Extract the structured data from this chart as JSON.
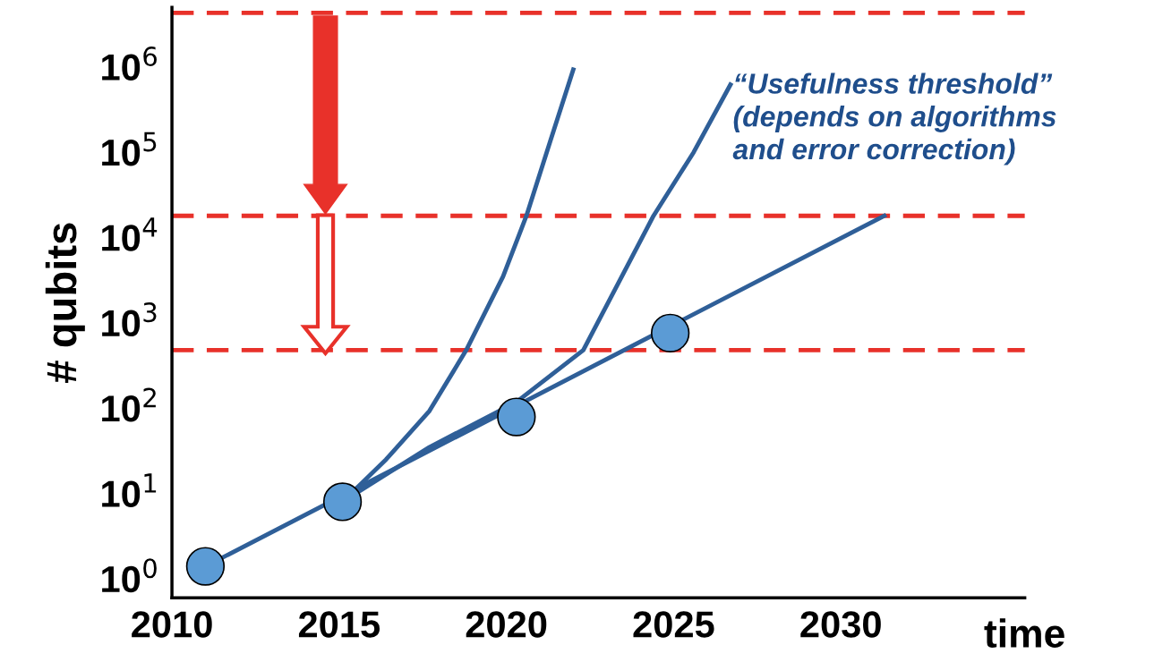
{
  "chart_data": {
    "type": "line",
    "xlabel": "time",
    "ylabel": "# qubits",
    "annotations": [
      "“Usefulness threshold”\n(depends on algorithms\nand error correction)"
    ],
    "log": "y",
    "grid": false,
    "line_style": "solid",
    "xlim": [
      2010,
      2035.5
    ],
    "xticks": [
      2010,
      2015,
      2020,
      2025,
      2030
    ],
    "ylim": [
      0.6,
      5000000
    ],
    "yticks": [
      {
        "value": 1,
        "label": "10$^{0}$"
      },
      {
        "value": 10,
        "label": "10$^{1}$"
      },
      {
        "value": 100,
        "label": "10$^{2}$"
      },
      {
        "value": 1000,
        "label": "10$^{3}$"
      },
      {
        "value": 10000,
        "label": "10$^{4}$"
      },
      {
        "value": 100000,
        "label": "10$^{5}$"
      },
      {
        "value": 1000000,
        "label": "10$^{6}$"
      }
    ],
    "series": [
      {
        "color": "#2f5f98",
        "x": [
          2015.1,
          2016.4,
          2017.7,
          2018.8,
          2019.9,
          2020.6,
          2021.3,
          2022.0
        ],
        "values": [
          8,
          25,
          93,
          480,
          3500,
          18000,
          130000,
          930000
        ]
      },
      {
        "color": "#2f5f98",
        "x": [
          2015.1,
          2017.7,
          2020.3,
          2022.3,
          2024.4,
          2025.6,
          2026.7
        ],
        "values": [
          8,
          35,
          118,
          480,
          18000,
          100000,
          620000
        ]
      },
      {
        "color": "#2f5f98",
        "x": [
          2011.0,
          2031.3
        ],
        "values": [
          1.4,
          18000
        ]
      },
      {
        "type": "scatter",
        "color": "#5b9bd5",
        "marker": "circle",
        "x": [
          2011.0,
          2015.1,
          2020.3,
          2024.9
        ],
        "values": [
          1.4,
          8,
          79,
          760
        ]
      }
    ],
    "ref_lines": [
      {
        "axis": "y",
        "value": 4300000,
        "color": "#e8312a",
        "line_style": "dashed"
      },
      {
        "axis": "y",
        "value": 18000,
        "color": "#e8312a",
        "line_style": "dashed"
      },
      {
        "axis": "y",
        "value": 480,
        "color": "#e8312a",
        "line_style": "dashed"
      }
    ]
  }
}
